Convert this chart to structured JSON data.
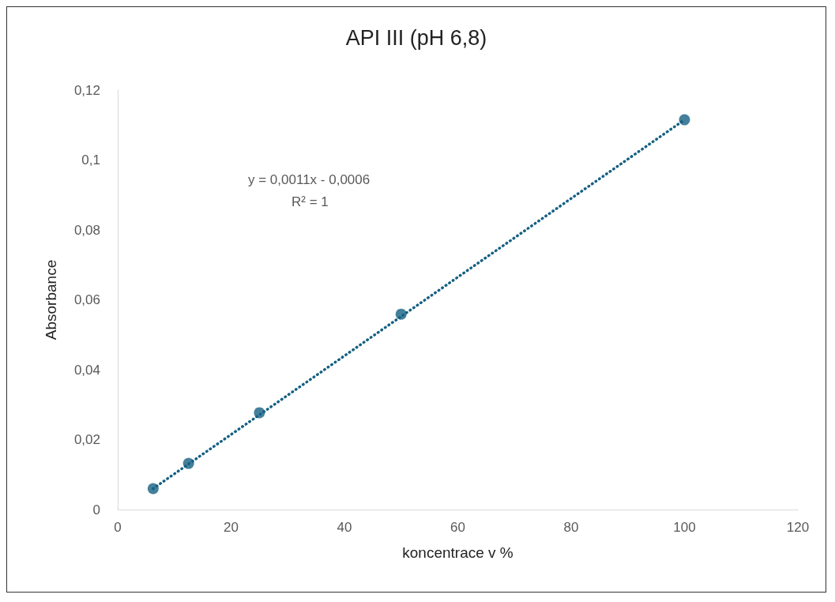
{
  "chart_data": {
    "type": "scatter",
    "title": "API III (pH 6,8)",
    "xlabel": "koncentrace v %",
    "ylabel": "Absorbance",
    "x": [
      6.25,
      12.5,
      25,
      50,
      100
    ],
    "series": [
      {
        "type": "scatter",
        "color": "#156082",
        "values": [
          0.006,
          0.0132,
          0.0277,
          0.0559,
          0.1115
        ],
        "marker": "circle"
      },
      {
        "type": "line",
        "color": "#156082",
        "x": [
          6.25,
          100
        ],
        "values": [
          0.006,
          0.1115
        ],
        "line_style": "dotted",
        "marker": "none"
      }
    ],
    "xlim": [
      0,
      120
    ],
    "xticks": [
      0,
      20,
      40,
      60,
      80,
      100,
      120
    ],
    "ylim": [
      0,
      0.12
    ],
    "yticks": [
      0,
      {
        "value": 0.02,
        "label": "0,02"
      },
      {
        "value": 0.04,
        "label": "0,04"
      },
      {
        "value": 0.06,
        "label": "0,06"
      },
      {
        "value": 0.08,
        "label": "0,08"
      },
      {
        "value": 0.1,
        "label": "0,1"
      },
      {
        "value": 0.12,
        "label": "0,12"
      }
    ],
    "grid": false,
    "annotations": [
      "y = 0,0011x - 0,0006",
      "R² = 1"
    ]
  }
}
